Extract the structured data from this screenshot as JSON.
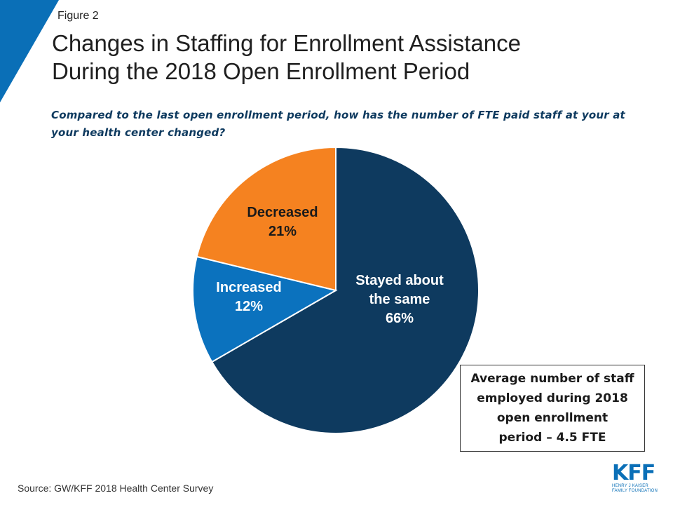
{
  "header": {
    "figure_label": "Figure 2",
    "title_line1": "Changes in Staffing for Enrollment Assistance",
    "title_line2": "During the 2018 Open Enrollment Period",
    "question": "Compared to the last open enrollment period, how has the number of FTE paid staff at your at your health center changed?"
  },
  "colors": {
    "accent": "#0a6fb7",
    "stayed": "#0e3a5f",
    "increased": "#0b72be",
    "decreased": "#f58220"
  },
  "chart_data": {
    "type": "pie",
    "slices": [
      {
        "label_lines": [
          "Stayed about",
          "the same"
        ],
        "pct_text": "66%",
        "value": 66,
        "color": "#0e3a5f",
        "text_color": "#ffffff"
      },
      {
        "label_lines": [
          "Increased"
        ],
        "pct_text": "12%",
        "value": 12,
        "color": "#0b72be",
        "text_color": "#ffffff"
      },
      {
        "label_lines": [
          "Decreased"
        ],
        "pct_text": "21%",
        "value": 21,
        "color": "#f58220",
        "text_color": "#1a1a1a"
      }
    ],
    "start": "12 o'clock",
    "direction": "clockwise"
  },
  "callout": {
    "line1": "Average number of staff",
    "line2": "employed during 2018",
    "line3": "open enrollment",
    "line4": "period – 4.5 FTE"
  },
  "footer": {
    "source": "Source: GW/KFF 2018 Health Center Survey",
    "logo_text": "KFF",
    "logo_sub1": "HENRY J KAISER",
    "logo_sub2": "FAMILY FOUNDATION"
  }
}
